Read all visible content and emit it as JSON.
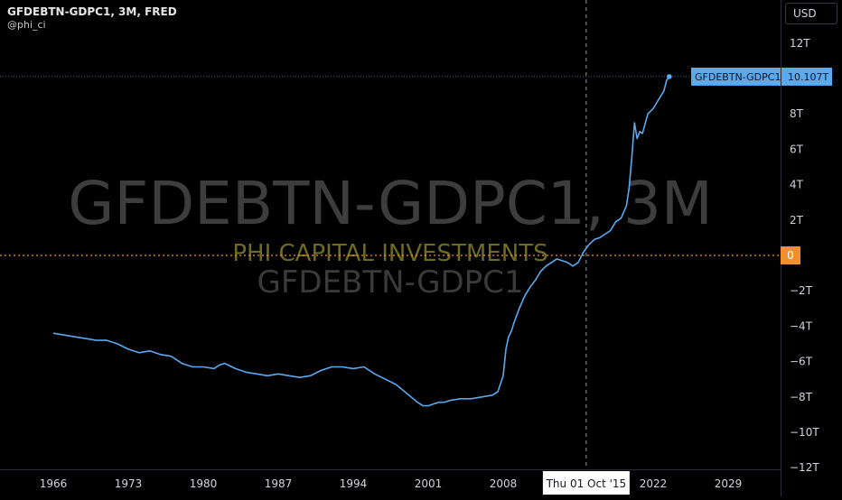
{
  "header": {
    "title": "GFDEBTN-GDPC1, 3M, FRED",
    "author": "@phi_ci"
  },
  "watermark": {
    "symbol": "GFDEBTN-GDPC1, 3M",
    "brand": "PHI CAPITAL INVESTMENTS",
    "subtitle": "GFDEBTN-GDPC1"
  },
  "currency_label": "USD",
  "crosshair": {
    "date_label": "Thu 01 Oct '15",
    "date_value": 2015.75
  },
  "last_value_tag": {
    "series_label": "GFDEBTN-GDPC1",
    "value_label": "10.107T"
  },
  "zero_tag": {
    "label": "0"
  },
  "colors": {
    "background": "#000000",
    "series": "#5aa9f0",
    "zero_line": "#f0902d",
    "watermark_symbol": "#3d3d3d",
    "watermark_brand": "#6e6a22",
    "watermark_subtitle": "#3a3a3a",
    "axis_text": "#d1d4dc",
    "crosshair": "#9598a1"
  },
  "chart_data": {
    "type": "line",
    "title": "GFDEBTN-GDPC1, 3M, FRED",
    "xlabel": "",
    "ylabel": "",
    "xlim": [
      1960.5,
      2035.5
    ],
    "ylim": [
      -12,
      12.8
    ],
    "x_ticks": [
      1966,
      1973,
      1980,
      1987,
      1994,
      2001,
      2008,
      2022,
      2029
    ],
    "x_tick_labels": [
      "1966",
      "1973",
      "1980",
      "1987",
      "1994",
      "2001",
      "2008",
      "2022",
      "2029"
    ],
    "y_ticks": [
      12,
      10,
      8,
      6,
      4,
      2,
      -2,
      -4,
      -6,
      -8,
      -10,
      -12
    ],
    "y_tick_labels": [
      "12T",
      "",
      "8T",
      "6T",
      "4T",
      "2T",
      "−2T",
      "−4T",
      "−6T",
      "−8T",
      "−10T",
      "−12T"
    ],
    "grid": false,
    "series": [
      {
        "name": "GFDEBTN-GDPC1",
        "x": [
          1966.0,
          1967.0,
          1968.0,
          1969.0,
          1970.0,
          1971.0,
          1972.0,
          1973.0,
          1974.0,
          1975.0,
          1976.0,
          1977.0,
          1978.0,
          1979.0,
          1980.0,
          1981.0,
          1981.5,
          1982.0,
          1983.0,
          1984.0,
          1985.0,
          1986.0,
          1987.0,
          1988.0,
          1989.0,
          1990.0,
          1991.0,
          1992.0,
          1993.0,
          1994.0,
          1995.0,
          1996.0,
          1997.0,
          1998.0,
          1999.0,
          2000.0,
          2000.5,
          2001.0,
          2001.5,
          2002.0,
          2002.5,
          2003.0,
          2004.0,
          2005.0,
          2006.0,
          2007.0,
          2007.5,
          2008.0,
          2008.25,
          2008.5,
          2008.75,
          2009.0,
          2009.5,
          2010.0,
          2010.5,
          2011.0,
          2011.5,
          2012.0,
          2013.0,
          2014.0,
          2014.5,
          2015.0,
          2015.5,
          2016.0,
          2016.5,
          2017.0,
          2017.5,
          2018.0,
          2018.5,
          2019.0,
          2019.5,
          2019.75,
          2020.0,
          2020.25,
          2020.5,
          2020.75,
          2021.0,
          2021.5,
          2022.0,
          2022.5,
          2023.0,
          2023.25,
          2023.5
        ],
        "y": [
          -4.4,
          -4.5,
          -4.6,
          -4.7,
          -4.8,
          -4.8,
          -5.0,
          -5.3,
          -5.5,
          -5.4,
          -5.6,
          -5.7,
          -6.1,
          -6.3,
          -6.3,
          -6.4,
          -6.2,
          -6.1,
          -6.4,
          -6.6,
          -6.7,
          -6.8,
          -6.7,
          -6.8,
          -6.9,
          -6.8,
          -6.5,
          -6.3,
          -6.3,
          -6.4,
          -6.3,
          -6.7,
          -7.0,
          -7.3,
          -7.8,
          -8.3,
          -8.5,
          -8.5,
          -8.4,
          -8.3,
          -8.3,
          -8.2,
          -8.1,
          -8.1,
          -8.0,
          -7.9,
          -7.7,
          -6.8,
          -5.3,
          -4.6,
          -4.3,
          -3.8,
          -3.0,
          -2.3,
          -1.8,
          -1.4,
          -0.9,
          -0.6,
          -0.2,
          -0.4,
          -0.6,
          -0.4,
          0.2,
          0.6,
          0.9,
          1.0,
          1.2,
          1.4,
          1.9,
          2.1,
          2.8,
          3.8,
          5.5,
          7.5,
          6.6,
          7.0,
          6.9,
          8.0,
          8.3,
          8.8,
          9.3,
          9.9,
          10.107
        ]
      }
    ],
    "last_value": 10.107,
    "legend": "none"
  }
}
